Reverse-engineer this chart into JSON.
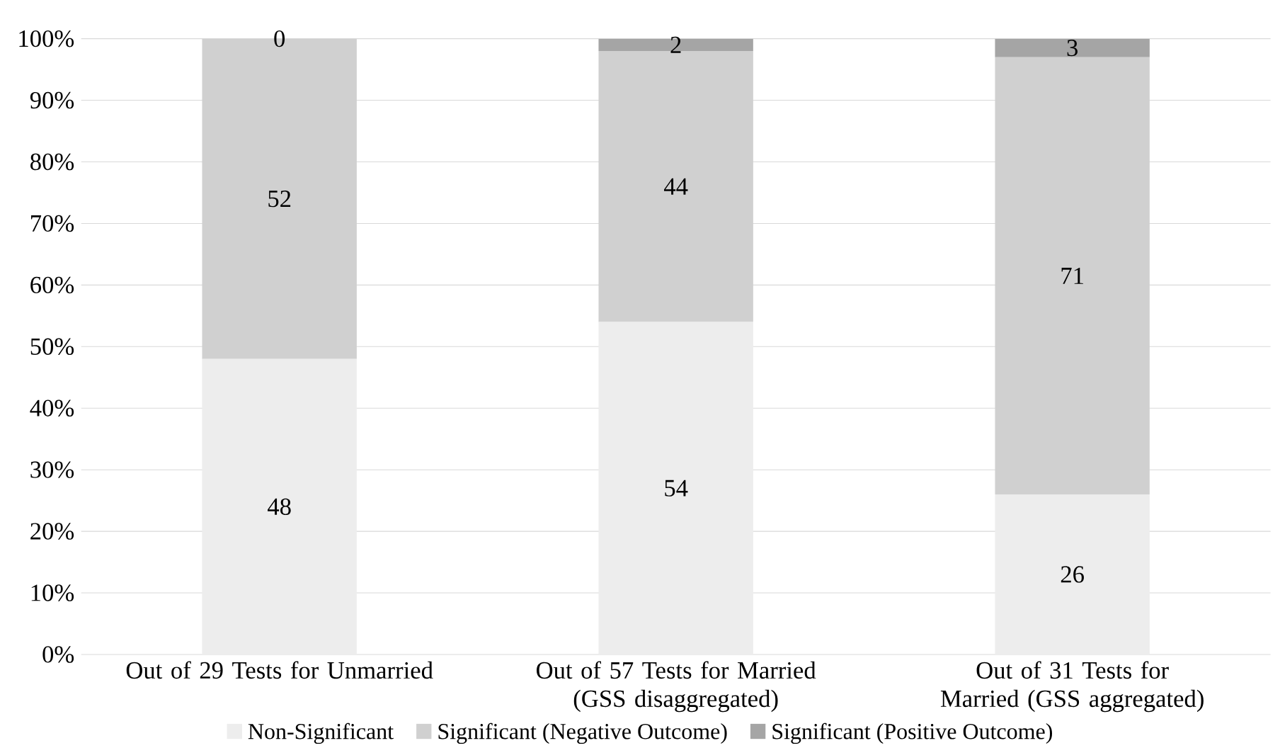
{
  "chart_data": {
    "type": "bar",
    "stacked": true,
    "categories": [
      "Out of 29 Tests for Unmarried",
      "Out of 57 Tests for Married (GSS disaggregated)",
      "Out of 31 Tests for Married (GSS aggregated)"
    ],
    "series": [
      {
        "name": "Non-Significant",
        "color": "#ededed",
        "values": [
          48,
          54,
          26
        ]
      },
      {
        "name": "Significant (Negative Outcome)",
        "color": "#d0d0d0",
        "values": [
          52,
          44,
          71
        ]
      },
      {
        "name": "Significant (Positive Outcome)",
        "color": "#a5a5a5",
        "values": [
          0,
          2,
          3
        ]
      }
    ],
    "ylim": [
      0,
      100
    ],
    "yticks": [
      {
        "value": 0,
        "label": "0%"
      },
      {
        "value": 10,
        "label": "10%"
      },
      {
        "value": 20,
        "label": "20%"
      },
      {
        "value": 30,
        "label": "30%"
      },
      {
        "value": 40,
        "label": "40%"
      },
      {
        "value": 50,
        "label": "50%"
      },
      {
        "value": 60,
        "label": "60%"
      },
      {
        "value": 70,
        "label": "70%"
      },
      {
        "value": 80,
        "label": "80%"
      },
      {
        "value": 90,
        "label": "90%"
      },
      {
        "value": 100,
        "label": "100%"
      }
    ],
    "grid": "y",
    "legend": "bottom",
    "data_labels": true
  }
}
